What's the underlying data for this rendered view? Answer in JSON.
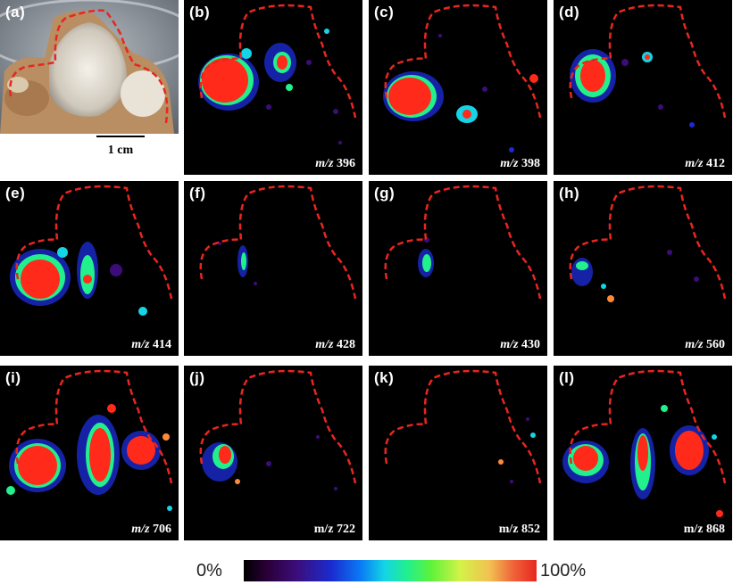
{
  "panels": [
    {
      "letter": "(a)",
      "type": "photo",
      "scale_bar": "1 cm"
    },
    {
      "letter": "(b)",
      "type": "image",
      "mz_prefix": "m/z",
      "mz_value": "396",
      "italic": true
    },
    {
      "letter": "(c)",
      "type": "image",
      "mz_prefix": "m/z",
      "mz_value": "398",
      "italic": true
    },
    {
      "letter": "(d)",
      "type": "image",
      "mz_prefix": "m/z",
      "mz_value": "412",
      "italic": true
    },
    {
      "letter": "(e)",
      "type": "image",
      "mz_prefix": "m/z",
      "mz_value": "414",
      "italic": true
    },
    {
      "letter": "(f)",
      "type": "image",
      "mz_prefix": "m/z",
      "mz_value": "428",
      "italic": true
    },
    {
      "letter": "(g)",
      "type": "image",
      "mz_prefix": "m/z",
      "mz_value": "430",
      "italic": true
    },
    {
      "letter": "(h)",
      "type": "image",
      "mz_prefix": "m/z",
      "mz_value": "560",
      "italic": true
    },
    {
      "letter": "(i)",
      "type": "image",
      "mz_prefix": "m/z",
      "mz_value": "706",
      "italic": true
    },
    {
      "letter": "(j)",
      "type": "image",
      "mz_prefix": "m/z",
      "mz_value": "722",
      "italic": false
    },
    {
      "letter": "(k)",
      "type": "image",
      "mz_prefix": "m/z",
      "mz_value": "852",
      "italic": false
    },
    {
      "letter": "(l)",
      "type": "image",
      "mz_prefix": "m/z",
      "mz_value": "868",
      "italic": false
    }
  ],
  "colorbar": {
    "min_label": "0%",
    "max_label": "100%"
  },
  "colors": {
    "outline": "#e8261f",
    "background": "#000000",
    "hot": "#ff2a1a"
  }
}
